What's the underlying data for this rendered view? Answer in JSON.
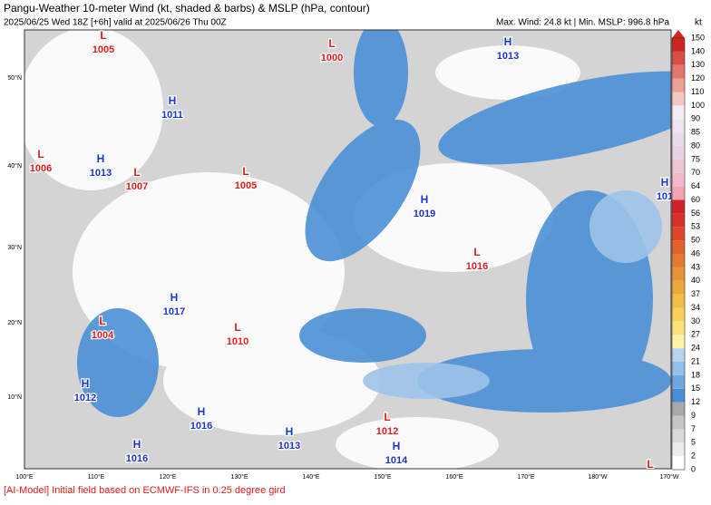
{
  "header": {
    "title": "Pangu-Weather 10-meter Wind (kt, shaded & barbs) & MSLP (hPa, contour)",
    "subtitle": "2025/06/25 Wed 18Z [+6h] valid at 2025/06/26 Thu 00Z",
    "stats": "Max. Wind: 24.8 kt | Min. MSLP: 996.8 hPa"
  },
  "map": {
    "lat_labels": [
      "50°N",
      "40°N",
      "30°N",
      "20°N",
      "10°N"
    ],
    "lon_labels": [
      "100°E",
      "110°E",
      "120°E",
      "130°E",
      "140°E",
      "150°E",
      "160°E",
      "170°E",
      "180°W",
      "170°W"
    ]
  },
  "centers": [
    {
      "type": "L",
      "value": 1005
    },
    {
      "type": "L",
      "value": 1000
    },
    {
      "type": "H",
      "value": 1013
    },
    {
      "type": "H",
      "value": 1011
    },
    {
      "type": "L",
      "value": 1006
    },
    {
      "type": "H",
      "value": 1013
    },
    {
      "type": "L",
      "value": 1007
    },
    {
      "type": "L",
      "value": 1005
    },
    {
      "type": "H",
      "value": 101
    },
    {
      "type": "H",
      "value": 1019
    },
    {
      "type": "L",
      "value": 1016
    },
    {
      "type": "H",
      "value": 1017
    },
    {
      "type": "L",
      "value": 1004
    },
    {
      "type": "L",
      "value": 1010
    },
    {
      "type": "H",
      "value": 1012
    },
    {
      "type": "H",
      "value": 1016
    },
    {
      "type": "L",
      "value": 1012
    },
    {
      "type": "H",
      "value": 1013
    },
    {
      "type": "H",
      "value": 1016
    },
    {
      "type": "H",
      "value": 1014
    },
    {
      "type": "L"
    }
  ],
  "colorbar": {
    "unit": "kt",
    "levels": [
      0,
      2,
      5,
      7,
      9,
      12,
      15,
      18,
      21,
      24,
      27,
      30,
      34,
      37,
      40,
      43,
      46,
      50,
      53,
      56,
      60,
      64,
      70,
      75,
      80,
      85,
      90,
      100,
      110,
      120,
      130,
      140,
      150
    ],
    "colors": [
      "#ffffff",
      "#ececec",
      "#d9d9d9",
      "#c6c6c6",
      "#a9a9a9",
      "#4a8fd6",
      "#6fa6df",
      "#94bfe8",
      "#b7d4ef",
      "#fff3a6",
      "#fbe27c",
      "#f6d05a",
      "#f0bd45",
      "#eba93a",
      "#e89334",
      "#e57a2f",
      "#e2602b",
      "#de4529",
      "#d8302a",
      "#cf222b",
      "#f4a3b6",
      "#f0b8c8",
      "#ebc7d6",
      "#e6d4e2",
      "#e9dcea",
      "#eee4f0",
      "#f3ecf5",
      "#f4c7c0",
      "#ec9f95",
      "#e2766c",
      "#d84d44",
      "#cc261f"
    ]
  },
  "footer": "[AI-Model] Initial field based on ECMWF-IFS in 0.25 degree gird"
}
